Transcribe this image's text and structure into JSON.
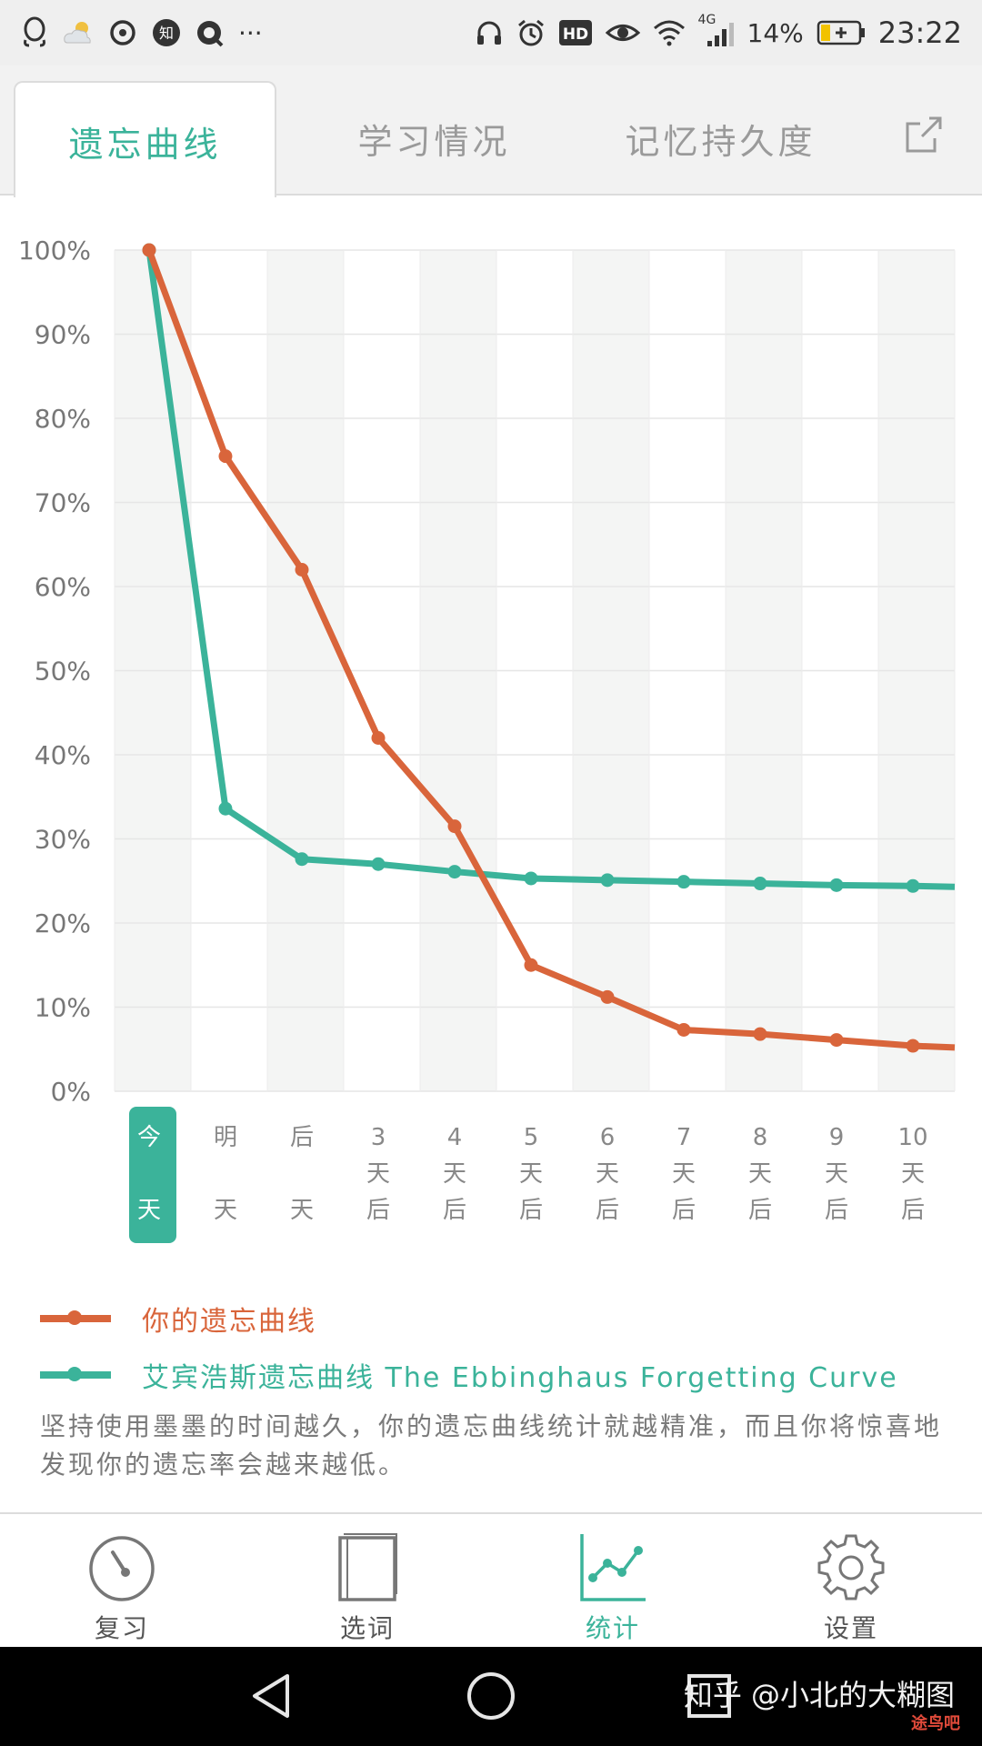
{
  "statusbar": {
    "battery": "14%",
    "time": "23:22",
    "network": "4G",
    "hd": "HD",
    "zhi": "知",
    "more": "···"
  },
  "tabs": [
    {
      "label": "遗忘曲线",
      "active": true
    },
    {
      "label": "学习情况",
      "active": false
    },
    {
      "label": "记忆持久度",
      "active": false
    }
  ],
  "chart_data": {
    "type": "line",
    "y_tick_labels": [
      "100%",
      "90%",
      "80%",
      "70%",
      "60%",
      "50%",
      "40%",
      "30%",
      "20%",
      "10%",
      "0%"
    ],
    "ylim": [
      0,
      100
    ],
    "categories": [
      {
        "lines": [
          "今",
          "天"
        ],
        "highlighted": true
      },
      {
        "lines": [
          "明",
          "天"
        ]
      },
      {
        "lines": [
          "后",
          "天"
        ]
      },
      {
        "lines": [
          "3",
          "天",
          "后"
        ]
      },
      {
        "lines": [
          "4",
          "天",
          "后"
        ]
      },
      {
        "lines": [
          "5",
          "天",
          "后"
        ]
      },
      {
        "lines": [
          "6",
          "天",
          "后"
        ]
      },
      {
        "lines": [
          "7",
          "天",
          "后"
        ]
      },
      {
        "lines": [
          "8",
          "天",
          "后"
        ]
      },
      {
        "lines": [
          "9",
          "天",
          "后"
        ]
      },
      {
        "lines": [
          "10",
          "天",
          "后"
        ]
      }
    ],
    "series": [
      {
        "name": "你的遗忘曲线",
        "color": "#d9653b",
        "values": [
          100,
          75.5,
          62,
          42,
          31.5,
          15,
          11.2,
          7.3,
          6.8,
          6.1,
          5.4
        ],
        "end_value": 5.2
      },
      {
        "name": "艾宾浩斯遗忘曲线 The Ebbinghaus Forgetting Curve",
        "color": "#3bb39a",
        "values": [
          100,
          33.6,
          27.6,
          27,
          26.1,
          25.3,
          25.1,
          24.9,
          24.7,
          24.5,
          24.4
        ],
        "end_value": 24.3
      }
    ],
    "grid": true
  },
  "note": "坚持使用墨墨的时间越久，你的遗忘曲线统计就越精准，而且你将惊喜地发现你的遗忘率会越来越低。",
  "bottom_nav": [
    {
      "label": "复习",
      "icon": "gauge-icon",
      "active": false
    },
    {
      "label": "选词",
      "icon": "book-icon",
      "active": false
    },
    {
      "label": "统计",
      "icon": "chart-icon",
      "active": true
    },
    {
      "label": "设置",
      "icon": "gear-icon",
      "active": false
    }
  ],
  "watermark": "知乎 @小北的大糊图",
  "watermark_logo": "途鸟吧",
  "colors": {
    "accent": "#3bb39a",
    "orange": "#d9653b"
  }
}
